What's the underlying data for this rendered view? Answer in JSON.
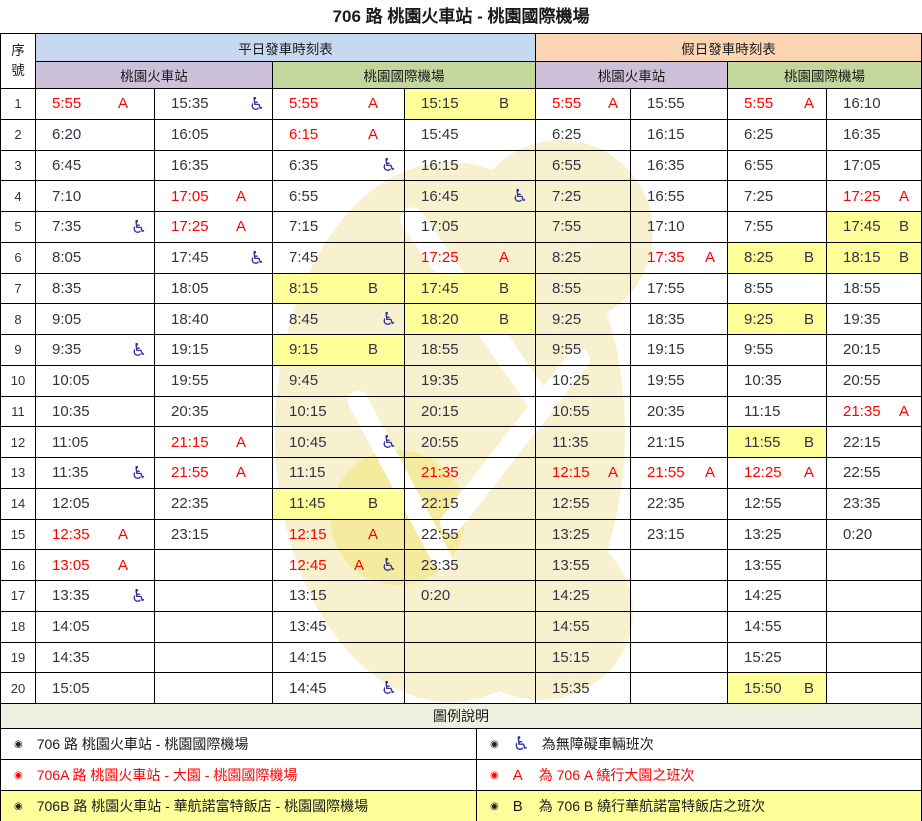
{
  "title": "706 路 桃園火車站 - 桃園國際機場",
  "colors": {
    "weekday_header": "#C6D9F1",
    "holiday_header": "#FCD5B4",
    "station_train": "#CCC1D9",
    "station_airport": "#C3D69B",
    "highlight": "#FFFF99",
    "red_text": "#FF0000",
    "legend_header": "#EBF1DE",
    "wheelchair_icon": "#32329B"
  },
  "icons": {
    "wheelchair": "♿"
  },
  "header": {
    "seq": "序號",
    "weekday": "平日發車時刻表",
    "holiday": "假日發車時刻表",
    "station_train": "桃園火車站",
    "station_airport": "桃園國際機場"
  },
  "timetable": {
    "rows": [
      {
        "no": "1",
        "cells": [
          [
            "5:55",
            "A",
            "r"
          ],
          [
            "15:35",
            "",
            "w"
          ],
          [
            "5:55",
            "A",
            "r"
          ],
          [
            "15:15",
            "B",
            "y"
          ],
          [
            "5:55",
            "A",
            "r"
          ],
          [
            "15:55",
            "",
            ""
          ],
          [
            "5:55",
            "A",
            "r"
          ],
          [
            "16:10",
            "",
            ""
          ]
        ]
      },
      {
        "no": "2",
        "cells": [
          [
            "6:20",
            "",
            ""
          ],
          [
            "16:05",
            "",
            ""
          ],
          [
            "6:15",
            "A",
            "r"
          ],
          [
            "15:45",
            "",
            ""
          ],
          [
            "6:25",
            "",
            ""
          ],
          [
            "16:15",
            "",
            ""
          ],
          [
            "6:25",
            "",
            ""
          ],
          [
            "16:35",
            "",
            ""
          ]
        ]
      },
      {
        "no": "3",
        "cells": [
          [
            "6:45",
            "",
            ""
          ],
          [
            "16:35",
            "",
            ""
          ],
          [
            "6:35",
            "",
            "w"
          ],
          [
            "16:15",
            "",
            ""
          ],
          [
            "6:55",
            "",
            ""
          ],
          [
            "16:35",
            "",
            ""
          ],
          [
            "6:55",
            "",
            ""
          ],
          [
            "17:05",
            "",
            ""
          ]
        ]
      },
      {
        "no": "4",
        "cells": [
          [
            "7:10",
            "",
            ""
          ],
          [
            "17:05",
            "A",
            "r"
          ],
          [
            "6:55",
            "",
            ""
          ],
          [
            "16:45",
            "",
            "w"
          ],
          [
            "7:25",
            "",
            ""
          ],
          [
            "16:55",
            "",
            ""
          ],
          [
            "7:25",
            "",
            ""
          ],
          [
            "17:25",
            "A",
            "r"
          ]
        ]
      },
      {
        "no": "5",
        "cells": [
          [
            "7:35",
            "",
            "w"
          ],
          [
            "17:25",
            "A",
            "r"
          ],
          [
            "7:15",
            "",
            ""
          ],
          [
            "17:05",
            "",
            ""
          ],
          [
            "7:55",
            "",
            ""
          ],
          [
            "17:10",
            "",
            ""
          ],
          [
            "7:55",
            "",
            ""
          ],
          [
            "17:45",
            "B",
            "y"
          ]
        ]
      },
      {
        "no": "6",
        "cells": [
          [
            "8:05",
            "",
            ""
          ],
          [
            "17:45",
            "",
            "w"
          ],
          [
            "7:45",
            "",
            ""
          ],
          [
            "17:25",
            "A",
            "r"
          ],
          [
            "8:25",
            "",
            ""
          ],
          [
            "17:35",
            "A",
            "r"
          ],
          [
            "8:25",
            "B",
            "y"
          ],
          [
            "18:15",
            "B",
            "y"
          ]
        ]
      },
      {
        "no": "7",
        "cells": [
          [
            "8:35",
            "",
            ""
          ],
          [
            "18:05",
            "",
            ""
          ],
          [
            "8:15",
            "B",
            "y"
          ],
          [
            "17:45",
            "B",
            "y"
          ],
          [
            "8:55",
            "",
            ""
          ],
          [
            "17:55",
            "",
            ""
          ],
          [
            "8:55",
            "",
            ""
          ],
          [
            "18:55",
            "",
            ""
          ]
        ]
      },
      {
        "no": "8",
        "cells": [
          [
            "9:05",
            "",
            ""
          ],
          [
            "18:40",
            "",
            ""
          ],
          [
            "8:45",
            "",
            "w"
          ],
          [
            "18:20",
            "B",
            "y"
          ],
          [
            "9:25",
            "",
            ""
          ],
          [
            "18:35",
            "",
            ""
          ],
          [
            "9:25",
            "B",
            "y"
          ],
          [
            "19:35",
            "",
            ""
          ]
        ]
      },
      {
        "no": "9",
        "cells": [
          [
            "9:35",
            "",
            "w"
          ],
          [
            "19:15",
            "",
            ""
          ],
          [
            "9:15",
            "B",
            "y"
          ],
          [
            "18:55",
            "",
            ""
          ],
          [
            "9:55",
            "",
            ""
          ],
          [
            "19:15",
            "",
            ""
          ],
          [
            "9:55",
            "",
            ""
          ],
          [
            "20:15",
            "",
            ""
          ]
        ]
      },
      {
        "no": "10",
        "cells": [
          [
            "10:05",
            "",
            ""
          ],
          [
            "19:55",
            "",
            ""
          ],
          [
            "9:45",
            "",
            ""
          ],
          [
            "19:35",
            "",
            ""
          ],
          [
            "10:25",
            "",
            ""
          ],
          [
            "19:55",
            "",
            ""
          ],
          [
            "10:35",
            "",
            ""
          ],
          [
            "20:55",
            "",
            ""
          ]
        ]
      },
      {
        "no": "11",
        "cells": [
          [
            "10:35",
            "",
            ""
          ],
          [
            "20:35",
            "",
            ""
          ],
          [
            "10:15",
            "",
            ""
          ],
          [
            "20:15",
            "",
            ""
          ],
          [
            "10:55",
            "",
            ""
          ],
          [
            "20:35",
            "",
            ""
          ],
          [
            "11:15",
            "",
            ""
          ],
          [
            "21:35",
            "A",
            "r"
          ]
        ]
      },
      {
        "no": "12",
        "cells": [
          [
            "11:05",
            "",
            ""
          ],
          [
            "21:15",
            "A",
            "r"
          ],
          [
            "10:45",
            "",
            "w"
          ],
          [
            "20:55",
            "",
            ""
          ],
          [
            "11:35",
            "",
            ""
          ],
          [
            "21:15",
            "",
            ""
          ],
          [
            "11:55",
            "B",
            "y"
          ],
          [
            "22:15",
            "",
            ""
          ]
        ]
      },
      {
        "no": "13",
        "cells": [
          [
            "11:35",
            "",
            "w"
          ],
          [
            "21:55",
            "A",
            "r"
          ],
          [
            "11:15",
            "",
            ""
          ],
          [
            "21:35",
            "",
            "r"
          ],
          [
            "12:15",
            "A",
            "r"
          ],
          [
            "21:55",
            "A",
            "r"
          ],
          [
            "12:25",
            "A",
            "r"
          ],
          [
            "22:55",
            "",
            ""
          ]
        ]
      },
      {
        "no": "14",
        "cells": [
          [
            "12:05",
            "",
            ""
          ],
          [
            "22:35",
            "",
            ""
          ],
          [
            "11:45",
            "B",
            "y"
          ],
          [
            "22:15",
            "",
            ""
          ],
          [
            "12:55",
            "",
            ""
          ],
          [
            "22:35",
            "",
            ""
          ],
          [
            "12:55",
            "",
            ""
          ],
          [
            "23:35",
            "",
            ""
          ]
        ]
      },
      {
        "no": "15",
        "cells": [
          [
            "12:35",
            "A",
            "r"
          ],
          [
            "23:15",
            "",
            ""
          ],
          [
            "12:15",
            "A",
            "r"
          ],
          [
            "22:55",
            "",
            ""
          ],
          [
            "13:25",
            "",
            ""
          ],
          [
            "23:15",
            "",
            ""
          ],
          [
            "13:25",
            "",
            ""
          ],
          [
            "0:20",
            "",
            ""
          ]
        ]
      },
      {
        "no": "16",
        "cells": [
          [
            "13:05",
            "A",
            "r"
          ],
          [
            "",
            "",
            ""
          ],
          [
            "12:45",
            "A",
            "rw"
          ],
          [
            "23:35",
            "",
            ""
          ],
          [
            "13:55",
            "",
            ""
          ],
          [
            "",
            "",
            ""
          ],
          [
            "13:55",
            "",
            ""
          ],
          [
            "",
            "",
            ""
          ]
        ]
      },
      {
        "no": "17",
        "cells": [
          [
            "13:35",
            "",
            "w"
          ],
          [
            "",
            "",
            ""
          ],
          [
            "13:15",
            "",
            ""
          ],
          [
            "0:20",
            "",
            ""
          ],
          [
            "14:25",
            "",
            ""
          ],
          [
            "",
            "",
            ""
          ],
          [
            "14:25",
            "",
            ""
          ],
          [
            "",
            "",
            ""
          ]
        ]
      },
      {
        "no": "18",
        "cells": [
          [
            "14:05",
            "",
            ""
          ],
          [
            "",
            "",
            ""
          ],
          [
            "13:45",
            "",
            ""
          ],
          [
            "",
            "",
            ""
          ],
          [
            "14:55",
            "",
            ""
          ],
          [
            "",
            "",
            ""
          ],
          [
            "14:55",
            "",
            ""
          ],
          [
            "",
            "",
            ""
          ]
        ]
      },
      {
        "no": "19",
        "cells": [
          [
            "14:35",
            "",
            ""
          ],
          [
            "",
            "",
            ""
          ],
          [
            "14:15",
            "",
            ""
          ],
          [
            "",
            "",
            ""
          ],
          [
            "15:15",
            "",
            ""
          ],
          [
            "",
            "",
            ""
          ],
          [
            "15:25",
            "",
            ""
          ],
          [
            "",
            "",
            ""
          ]
        ]
      },
      {
        "no": "20",
        "cells": [
          [
            "15:05",
            "",
            ""
          ],
          [
            "",
            "",
            ""
          ],
          [
            "14:45",
            "",
            "w"
          ],
          [
            "",
            "",
            ""
          ],
          [
            "15:35",
            "",
            ""
          ],
          [
            "",
            "",
            ""
          ],
          [
            "15:50",
            "B",
            "y"
          ],
          [
            "",
            "",
            ""
          ]
        ]
      }
    ]
  },
  "legend": {
    "title": "圖例說明",
    "bullet": "◉",
    "rows": [
      {
        "left": {
          "text": "706 路 桃園火車站 - 桃園國際機場",
          "style": ""
        },
        "right": {
          "icon": "wheelchair",
          "text": "為無障礙車輛班次",
          "style": ""
        }
      },
      {
        "left": {
          "text": "706A 路 桃園火車站 - 大園 - 桃園國際機場",
          "style": "red"
        },
        "right": {
          "flag": "A",
          "text": "為 706 A 繞行大園之班次",
          "style": "red"
        }
      },
      {
        "left": {
          "text": "706B 路 桃園火車站 - 華航諾富特飯店 - 桃園國際機場",
          "style": "yellow"
        },
        "right": {
          "flag": "B",
          "text": "為 706 B 繞行華航諾富特飯店之班次",
          "style": "yellow"
        }
      }
    ]
  }
}
